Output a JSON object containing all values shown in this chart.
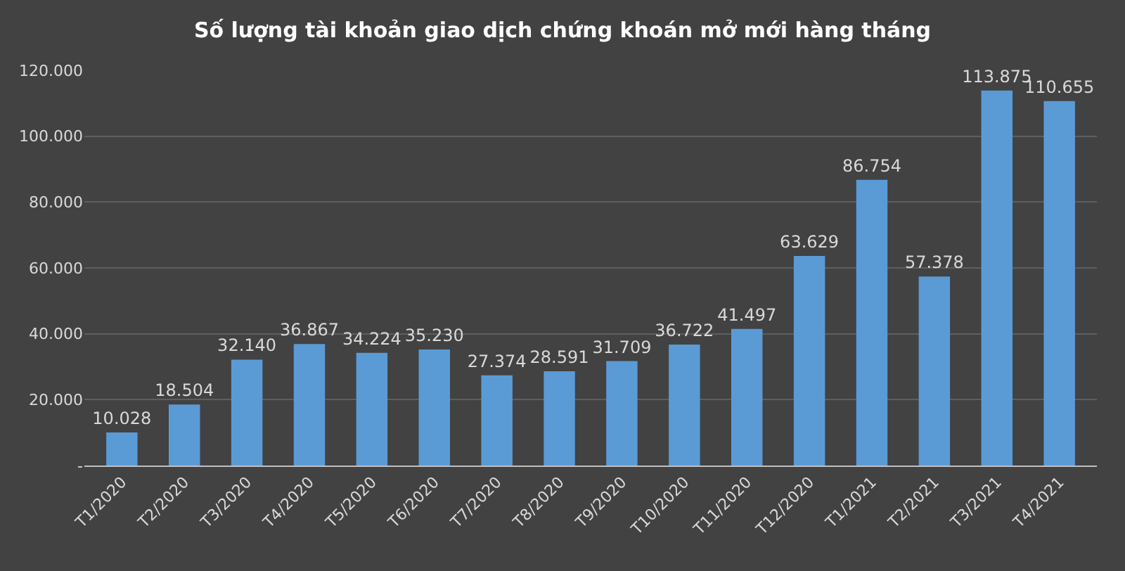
{
  "chart_data": {
    "type": "bar",
    "title": "Số lượng tài khoản giao dịch chứng khoán mở mới hàng tháng",
    "categories": [
      "T1/2020",
      "T2/2020",
      "T3/2020",
      "T4/2020",
      "T5/2020",
      "T6/2020",
      "T7/2020",
      "T8/2020",
      "T9/2020",
      "T10/2020",
      "T11/2020",
      "T12/2020",
      "T1/2021",
      "T2/2021",
      "T3/2021",
      "T4/2021"
    ],
    "values": [
      10028,
      18504,
      32140,
      36867,
      34224,
      35230,
      27374,
      28591,
      31709,
      36722,
      41497,
      63629,
      86754,
      57378,
      113875,
      110655
    ],
    "value_labels": [
      "10.028",
      "18.504",
      "32.140",
      "36.867",
      "34.224",
      "35.230",
      "27.374",
      "28.591",
      "31.709",
      "36.722",
      "41.497",
      "63.629",
      "86.754",
      "57.378",
      "113.875",
      "110.655"
    ],
    "color": "#5b9bd5",
    "ylim": [
      0,
      120000
    ],
    "yticks": [
      {
        "value": 0,
        "label": "-"
      },
      {
        "value": 20000,
        "label": "20.000"
      },
      {
        "value": 40000,
        "label": "40.000"
      },
      {
        "value": 60000,
        "label": "60.000"
      },
      {
        "value": 80000,
        "label": "80.000"
      },
      {
        "value": 100000,
        "label": "100.000"
      },
      {
        "value": 120000,
        "label": "120.000"
      }
    ],
    "grid": "y",
    "legend": false
  }
}
